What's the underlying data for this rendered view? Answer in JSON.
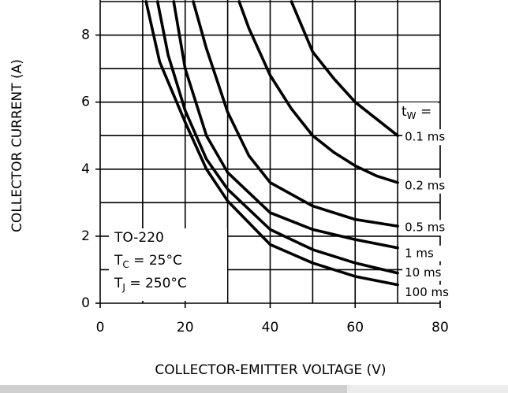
{
  "chart_data": {
    "type": "line",
    "xlabel": "COLLECTOR-EMITTER VOLTAGE (V)",
    "ylabel": "COLLECTOR CURRENT (A)",
    "xlim": [
      0,
      80
    ],
    "ylim": [
      0,
      9
    ],
    "xticks": [
      0,
      20,
      40,
      60,
      80
    ],
    "yticks": [
      0,
      2,
      4,
      6,
      8
    ],
    "xgrid": [
      0,
      10,
      20,
      30,
      40,
      50,
      60,
      70,
      80
    ],
    "ygrid": [
      0,
      1,
      2,
      3,
      4,
      5,
      6,
      7,
      8,
      9
    ],
    "grid": true,
    "legend_title": {
      "main": "t",
      "sub": "W",
      "rest": " ="
    },
    "annotation": [
      {
        "main": "TO-220"
      },
      {
        "main": "T",
        "sub": "C",
        "rest": " = 25°C"
      },
      {
        "main": "T",
        "sub": "J",
        "rest": " = 250°C"
      }
    ],
    "series": [
      {
        "name": "0.1 ms",
        "color": "#000000",
        "x": [
          45,
          50,
          55,
          60,
          65,
          70
        ],
        "values": [
          9,
          7.5,
          6.7,
          6.0,
          5.5,
          5.0
        ]
      },
      {
        "name": "0.2 ms",
        "color": "#000000",
        "x": [
          32.7,
          35,
          40,
          45,
          50,
          55,
          60,
          65,
          70
        ],
        "values": [
          9,
          8.2,
          6.8,
          5.8,
          5.0,
          4.5,
          4.1,
          3.8,
          3.6
        ]
      },
      {
        "name": "0.5 ms",
        "color": "#000000",
        "x": [
          21.9,
          25,
          30,
          35,
          40,
          50,
          60,
          70
        ],
        "values": [
          9,
          7.6,
          5.7,
          4.4,
          3.6,
          2.9,
          2.5,
          2.3
        ]
      },
      {
        "name": "1 ms",
        "color": "#000000",
        "x": [
          17.3,
          20,
          25,
          30,
          40,
          50,
          60,
          70
        ],
        "values": [
          9,
          7.0,
          5.0,
          3.9,
          2.7,
          2.2,
          1.9,
          1.65
        ]
      },
      {
        "name": "10 ms",
        "color": "#000000",
        "x": [
          13.5,
          16,
          20,
          25,
          30,
          40,
          50,
          60,
          70
        ],
        "values": [
          9,
          7.4,
          5.75,
          4.3,
          3.4,
          2.2,
          1.6,
          1.2,
          0.9
        ]
      },
      {
        "name": "100 ms",
        "color": "#000000",
        "x": [
          10.8,
          14,
          20,
          25,
          30,
          40,
          50,
          60,
          70
        ],
        "values": [
          9,
          7.2,
          5.4,
          4.0,
          3.05,
          1.75,
          1.2,
          0.8,
          0.55
        ]
      }
    ]
  }
}
